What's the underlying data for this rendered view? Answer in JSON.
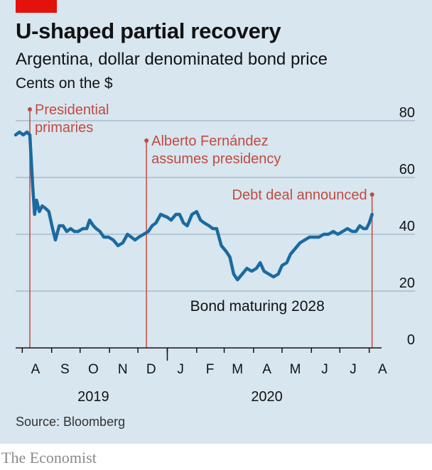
{
  "header": {
    "title": "U-shaped partial recovery",
    "subtitle": "Argentina, dollar denominated bond price",
    "unit": "Cents on the $"
  },
  "footer": {
    "source": "Source: Bloomberg",
    "brand": "The Economist"
  },
  "colors": {
    "line": "#1b6aa0",
    "annotation": "#c24a42",
    "grid": "#a9bccb",
    "background": "#d7e6ef",
    "brand_red": "#e3120b"
  },
  "chart_data": {
    "type": "line",
    "title": "U-shaped partial recovery",
    "subtitle": "Argentina, dollar denominated bond price",
    "ylabel": "Cents on the $",
    "ylim": [
      0,
      80
    ],
    "yticks": [
      0,
      20,
      40,
      60,
      80
    ],
    "y_axis_position": "right",
    "grid": true,
    "x_range": [
      "2019-07-25",
      "2020-08-05"
    ],
    "months": [
      {
        "label": "A",
        "date": "2019-08-15"
      },
      {
        "label": "S",
        "date": "2019-09-15"
      },
      {
        "label": "O",
        "date": "2019-10-15"
      },
      {
        "label": "N",
        "date": "2019-11-15"
      },
      {
        "label": "D",
        "date": "2019-12-15"
      },
      {
        "label": "J",
        "date": "2020-01-15"
      },
      {
        "label": "F",
        "date": "2020-02-15"
      },
      {
        "label": "M",
        "date": "2020-03-15"
      },
      {
        "label": "A",
        "date": "2020-04-15"
      },
      {
        "label": "M",
        "date": "2020-05-15"
      },
      {
        "label": "J",
        "date": "2020-06-15"
      },
      {
        "label": "J",
        "date": "2020-07-15"
      },
      {
        "label": "A",
        "date": "2020-08-15"
      }
    ],
    "month_ticks": [
      "2019-08-01",
      "2019-09-01",
      "2019-10-01",
      "2019-11-01",
      "2019-12-01",
      "2020-01-01",
      "2020-02-01",
      "2020-03-01",
      "2020-04-01",
      "2020-05-01",
      "2020-06-01",
      "2020-07-01",
      "2020-08-01"
    ],
    "years": [
      {
        "label": "2019",
        "date": "2019-10-15"
      },
      {
        "label": "2020",
        "date": "2020-04-15"
      }
    ],
    "annotations": [
      {
        "date": "2019-08-09",
        "y": 84,
        "lines": [
          "Presidential",
          "primaries"
        ],
        "align": "left"
      },
      {
        "date": "2019-12-10",
        "y": 73,
        "lines": [
          "Alberto Fernández",
          "assumes presidency"
        ],
        "align": "left"
      },
      {
        "date": "2020-08-04",
        "y": 54,
        "lines": [
          "Debt deal announced"
        ],
        "align": "right"
      }
    ],
    "series": [
      {
        "name": "Bond maturing 2028",
        "points": [
          [
            "2019-07-25",
            75
          ],
          [
            "2019-07-29",
            76
          ],
          [
            "2019-08-02",
            75
          ],
          [
            "2019-08-06",
            76
          ],
          [
            "2019-08-09",
            75
          ],
          [
            "2019-08-12",
            57
          ],
          [
            "2019-08-14",
            47
          ],
          [
            "2019-08-16",
            52
          ],
          [
            "2019-08-19",
            48
          ],
          [
            "2019-08-22",
            50
          ],
          [
            "2019-08-26",
            49
          ],
          [
            "2019-08-29",
            48
          ],
          [
            "2019-09-02",
            42
          ],
          [
            "2019-09-05",
            38
          ],
          [
            "2019-09-09",
            43
          ],
          [
            "2019-09-13",
            43
          ],
          [
            "2019-09-17",
            41
          ],
          [
            "2019-09-21",
            42
          ],
          [
            "2019-09-25",
            41
          ],
          [
            "2019-09-29",
            41
          ],
          [
            "2019-10-04",
            42
          ],
          [
            "2019-10-08",
            42
          ],
          [
            "2019-10-11",
            45
          ],
          [
            "2019-10-15",
            43
          ],
          [
            "2019-10-18",
            42
          ],
          [
            "2019-10-22",
            41
          ],
          [
            "2019-10-26",
            39
          ],
          [
            "2019-10-31",
            39
          ],
          [
            "2019-11-05",
            38
          ],
          [
            "2019-11-10",
            36
          ],
          [
            "2019-11-15",
            37
          ],
          [
            "2019-11-20",
            40
          ],
          [
            "2019-11-24",
            39
          ],
          [
            "2019-11-28",
            38
          ],
          [
            "2019-12-02",
            39
          ],
          [
            "2019-12-07",
            40
          ],
          [
            "2019-12-12",
            41
          ],
          [
            "2019-12-16",
            43
          ],
          [
            "2019-12-20",
            44
          ],
          [
            "2019-12-25",
            47
          ],
          [
            "2020-01-01",
            46
          ],
          [
            "2020-01-05",
            45
          ],
          [
            "2020-01-10",
            47
          ],
          [
            "2020-01-14",
            47
          ],
          [
            "2020-01-18",
            44
          ],
          [
            "2020-01-22",
            43
          ],
          [
            "2020-01-27",
            47
          ],
          [
            "2020-02-01",
            48
          ],
          [
            "2020-02-05",
            45
          ],
          [
            "2020-02-09",
            44
          ],
          [
            "2020-02-14",
            43
          ],
          [
            "2020-02-18",
            42
          ],
          [
            "2020-02-22",
            42
          ],
          [
            "2020-02-27",
            36
          ],
          [
            "2020-03-03",
            34
          ],
          [
            "2020-03-07",
            32
          ],
          [
            "2020-03-11",
            26
          ],
          [
            "2020-03-15",
            24
          ],
          [
            "2020-03-20",
            26
          ],
          [
            "2020-03-25",
            28
          ],
          [
            "2020-03-30",
            27
          ],
          [
            "2020-04-04",
            28
          ],
          [
            "2020-04-08",
            30
          ],
          [
            "2020-04-12",
            27
          ],
          [
            "2020-04-17",
            26
          ],
          [
            "2020-04-22",
            25
          ],
          [
            "2020-04-27",
            26
          ],
          [
            "2020-05-01",
            29
          ],
          [
            "2020-05-06",
            30
          ],
          [
            "2020-05-10",
            33
          ],
          [
            "2020-05-15",
            35
          ],
          [
            "2020-05-20",
            37
          ],
          [
            "2020-05-25",
            38
          ],
          [
            "2020-05-30",
            39
          ],
          [
            "2020-06-04",
            39
          ],
          [
            "2020-06-09",
            39
          ],
          [
            "2020-06-14",
            40
          ],
          [
            "2020-06-19",
            40
          ],
          [
            "2020-06-24",
            41
          ],
          [
            "2020-06-29",
            40
          ],
          [
            "2020-07-04",
            41
          ],
          [
            "2020-07-09",
            42
          ],
          [
            "2020-07-14",
            41
          ],
          [
            "2020-07-18",
            41
          ],
          [
            "2020-07-22",
            43
          ],
          [
            "2020-07-26",
            42
          ],
          [
            "2020-07-29",
            42
          ],
          [
            "2020-08-01",
            44
          ],
          [
            "2020-08-04",
            47
          ]
        ]
      }
    ]
  }
}
